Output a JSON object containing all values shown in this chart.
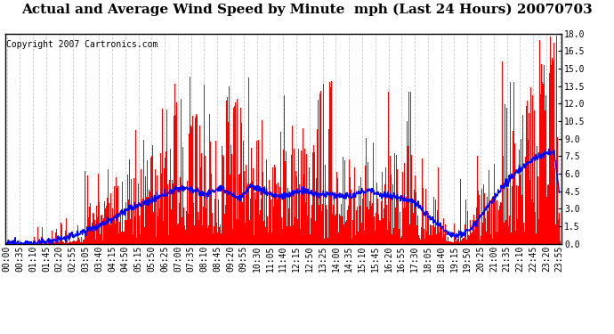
{
  "title": "Actual and Average Wind Speed by Minute  mph (Last 24 Hours) 20070703",
  "copyright": "Copyright 2007 Cartronics.com",
  "ylim": [
    0,
    18
  ],
  "yticks": [
    0.0,
    1.5,
    3.0,
    4.5,
    6.0,
    7.5,
    9.0,
    10.5,
    12.0,
    13.5,
    15.0,
    16.5,
    18.0
  ],
  "bar_color": "#FF0000",
  "line_color": "#0000FF",
  "bg_color": "#FFFFFF",
  "grid_color": "#C8C8C8",
  "title_fontsize": 11,
  "copyright_fontsize": 7,
  "tick_fontsize": 7,
  "x_tick_labels": [
    "00:00",
    "00:35",
    "01:10",
    "01:45",
    "02:20",
    "02:55",
    "03:05",
    "03:40",
    "04:15",
    "04:50",
    "05:15",
    "05:50",
    "06:25",
    "07:00",
    "07:35",
    "08:10",
    "08:45",
    "09:20",
    "09:55",
    "10:30",
    "11:05",
    "11:40",
    "12:15",
    "12:50",
    "13:25",
    "14:00",
    "14:35",
    "15:10",
    "15:45",
    "16:20",
    "16:55",
    "17:30",
    "18:05",
    "18:40",
    "19:15",
    "19:50",
    "20:25",
    "21:00",
    "21:35",
    "22:10",
    "22:45",
    "23:20",
    "23:55"
  ]
}
